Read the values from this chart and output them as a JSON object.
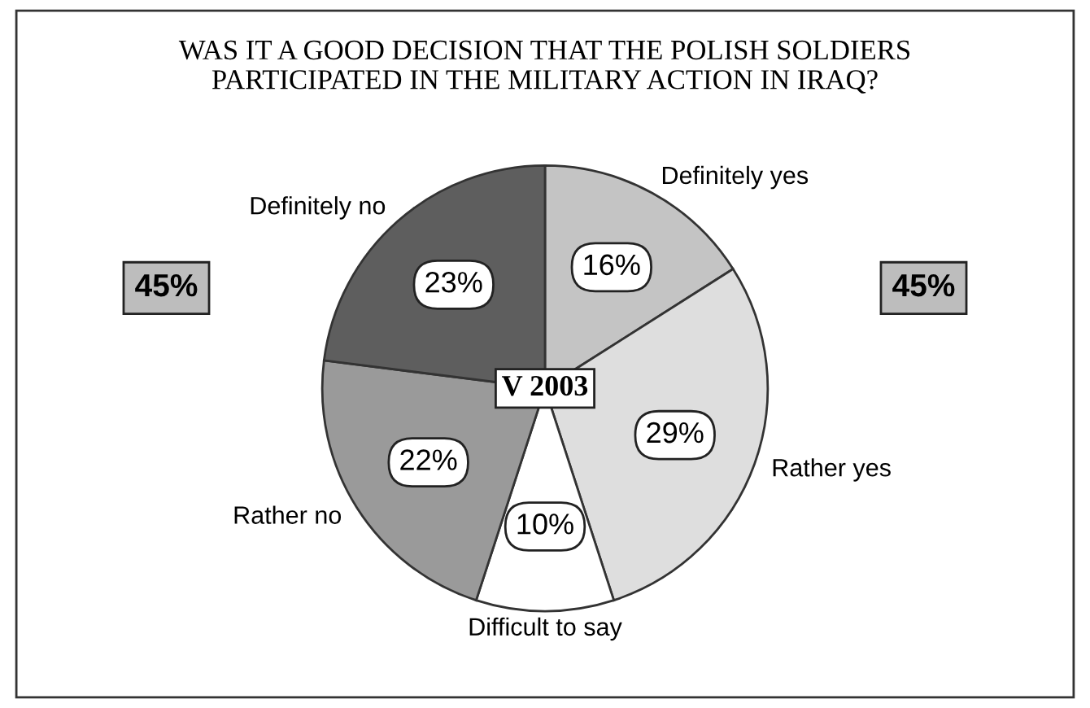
{
  "chart_data": {
    "type": "pie",
    "title": "WAS IT A GOOD DECISION THAT THE POLISH SOLDIERS\nPARTICIPATED IN THE MILITARY ACTION IN IRAQ?",
    "categories": [
      "Definitely yes",
      "Rather yes",
      "Difficult to say",
      "Rather no",
      "Definitely no"
    ],
    "values": [
      16,
      29,
      10,
      22,
      23
    ],
    "value_labels": [
      "16%",
      "29%",
      "10%",
      "22%",
      "23%"
    ],
    "colors": [
      "#c4c4c4",
      "#dedede",
      "#ffffff",
      "#9a9a9a",
      "#5e5e5e"
    ],
    "annotations": [
      "45%",
      "45%",
      "V 2003"
    ]
  }
}
